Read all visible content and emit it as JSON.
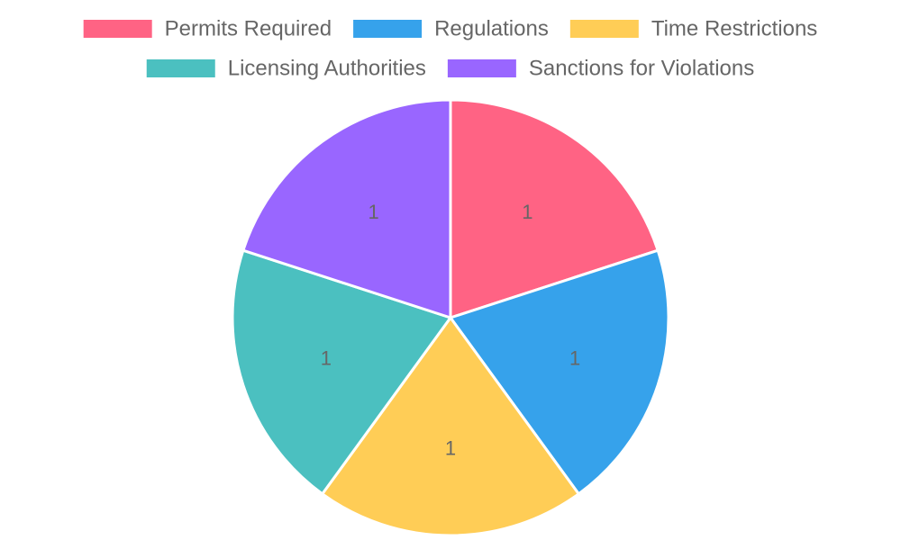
{
  "chart_data": {
    "type": "pie",
    "categories": [
      "Permits Required",
      "Regulations",
      "Time Restrictions",
      "Licensing Authorities",
      "Sanctions for Violations"
    ],
    "values": [
      1,
      1,
      1,
      1,
      1
    ],
    "colors": [
      "#ff6384",
      "#36a2eb",
      "#ffcd56",
      "#4bc0c0",
      "#9966ff"
    ],
    "slice_border_color": "#ffffff",
    "data_labels": true,
    "legend_position": "top"
  }
}
